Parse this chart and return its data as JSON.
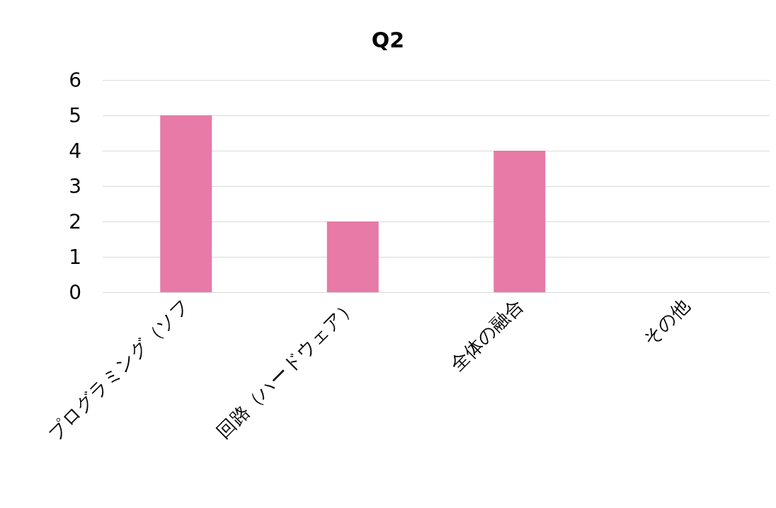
{
  "chart_data": {
    "type": "bar",
    "title": "Q2",
    "categories": [
      "プログラミング（ソフ",
      "回路（ハードウェア）",
      "全体の融合",
      "その他"
    ],
    "values": [
      5,
      2,
      4,
      0
    ],
    "color": "#e77aa7",
    "ylim": [
      0,
      6
    ],
    "yticks": [
      0,
      1,
      2,
      3,
      4,
      5,
      6
    ],
    "grid": "y"
  }
}
